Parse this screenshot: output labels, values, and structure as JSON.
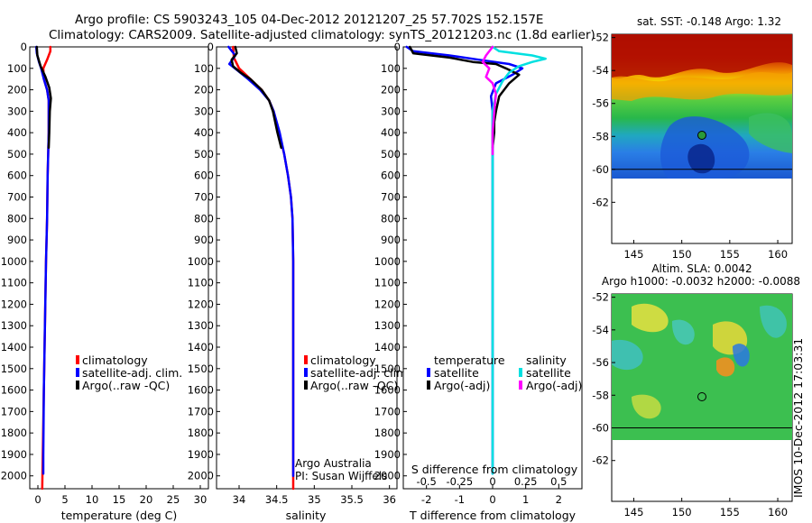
{
  "header": {
    "title_line1": "Argo profile: CS 5903243_105 04-Dec-2012 20121207_25 57.702S 152.157E",
    "title_line2": "Climatology: CARS2009. Satellite-adjusted climatology: synTS_20121203.nc (1.8d earlier)"
  },
  "side_stamp": "IMOS 10-Dec-2012 17:03:31",
  "colors": {
    "climatology": "#ff0000",
    "satellite": "#0000ff",
    "argo": "#000000",
    "sal_satellite": "#00e0e0",
    "sal_argo": "#ff00ff"
  },
  "depth_axis": {
    "ticks": [
      0,
      100,
      200,
      300,
      400,
      500,
      600,
      700,
      800,
      900,
      1000,
      1100,
      1200,
      1300,
      1400,
      1500,
      1600,
      1700,
      1800,
      1900,
      2000
    ],
    "max": 2060
  },
  "chart_data": [
    {
      "type": "line",
      "id": "temperature",
      "xlabel": "temperature (deg C)",
      "xlim": [
        -1.5,
        31.5
      ],
      "xticks": [
        0,
        5,
        10,
        15,
        20,
        25,
        30
      ],
      "y_axis": "depth (m), increasing downward",
      "legend": [
        "climatology",
        "satellite-adj. clim.",
        "Argo(..raw -QC)"
      ],
      "series": [
        {
          "name": "climatology",
          "color": "#ff0000",
          "width": 2.5,
          "points": [
            [
              2.3,
              0
            ],
            [
              2.3,
              20
            ],
            [
              1.7,
              60
            ],
            [
              1.0,
              100
            ],
            [
              1.1,
              150
            ],
            [
              1.7,
              200
            ],
            [
              2.0,
              250
            ],
            [
              2.0,
              300
            ],
            [
              2.0,
              400
            ],
            [
              1.9,
              500
            ],
            [
              1.8,
              600
            ],
            [
              1.7,
              800
            ],
            [
              1.5,
              1000
            ],
            [
              1.3,
              1300
            ],
            [
              1.1,
              1600
            ],
            [
              0.9,
              1900
            ],
            [
              0.8,
              2060
            ]
          ]
        },
        {
          "name": "satellite-adj. clim.",
          "color": "#0000ff",
          "width": 2.5,
          "points": [
            [
              -0.3,
              0
            ],
            [
              -0.2,
              30
            ],
            [
              0.2,
              70
            ],
            [
              0.6,
              100
            ],
            [
              1.1,
              150
            ],
            [
              1.7,
              200
            ],
            [
              2.0,
              250
            ],
            [
              2.0,
              300
            ],
            [
              2.0,
              400
            ],
            [
              1.9,
              500
            ],
            [
              1.8,
              600
            ],
            [
              1.7,
              800
            ],
            [
              1.5,
              1000
            ],
            [
              1.3,
              1300
            ],
            [
              1.1,
              1600
            ],
            [
              1.0,
              1900
            ],
            [
              1.0,
              1990
            ]
          ]
        },
        {
          "name": "Argo(..raw -QC)",
          "color": "#000000",
          "width": 2.5,
          "points": [
            [
              -0.2,
              0
            ],
            [
              -0.1,
              40
            ],
            [
              0.5,
              90
            ],
            [
              1.4,
              140
            ],
            [
              2.1,
              190
            ],
            [
              2.4,
              240
            ],
            [
              2.2,
              300
            ],
            [
              2.1,
              400
            ],
            [
              2.0,
              470
            ]
          ]
        }
      ]
    },
    {
      "type": "line",
      "id": "salinity",
      "xlabel": "salinity",
      "xlim": [
        33.7,
        36.1
      ],
      "xticks": [
        34,
        34.5,
        35,
        35.5,
        36
      ],
      "legend": [
        "climatology",
        "satellite-adj. clim.",
        "Argo(..raw -QC)"
      ],
      "annotation": [
        "Argo Australia",
        "PI: Susan Wijffels"
      ],
      "series": [
        {
          "name": "climatology",
          "color": "#ff0000",
          "width": 2.5,
          "points": [
            [
              33.92,
              0
            ],
            [
              33.93,
              50
            ],
            [
              34.0,
              100
            ],
            [
              34.15,
              150
            ],
            [
              34.3,
              200
            ],
            [
              34.4,
              250
            ],
            [
              34.46,
              300
            ],
            [
              34.53,
              400
            ],
            [
              34.6,
              500
            ],
            [
              34.65,
              600
            ],
            [
              34.69,
              700
            ],
            [
              34.71,
              800
            ],
            [
              34.72,
              1000
            ],
            [
              34.72,
              1500
            ],
            [
              34.72,
              2060
            ]
          ]
        },
        {
          "name": "satellite-adj. clim.",
          "color": "#0000ff",
          "width": 2.5,
          "points": [
            [
              33.86,
              0
            ],
            [
              33.95,
              40
            ],
            [
              33.87,
              80
            ],
            [
              33.98,
              110
            ],
            [
              34.12,
              150
            ],
            [
              34.28,
              200
            ],
            [
              34.4,
              250
            ],
            [
              34.46,
              300
            ],
            [
              34.54,
              400
            ],
            [
              34.6,
              500
            ],
            [
              34.65,
              600
            ],
            [
              34.69,
              700
            ],
            [
              34.71,
              800
            ],
            [
              34.72,
              1000
            ],
            [
              34.72,
              1500
            ],
            [
              34.72,
              2000
            ]
          ]
        },
        {
          "name": "Argo(..raw -QC)",
          "color": "#000000",
          "width": 2.5,
          "points": [
            [
              33.95,
              0
            ],
            [
              33.97,
              30
            ],
            [
              33.9,
              60
            ],
            [
              33.92,
              90
            ],
            [
              34.02,
              120
            ],
            [
              34.15,
              150
            ],
            [
              34.3,
              200
            ],
            [
              34.4,
              250
            ],
            [
              34.45,
              300
            ],
            [
              34.51,
              400
            ],
            [
              34.56,
              470
            ]
          ]
        }
      ]
    },
    {
      "type": "line",
      "id": "difference",
      "xlabel": "T difference from climatology",
      "xlabel_top": "S difference from climatology",
      "xlim": [
        -2.7,
        2.7
      ],
      "xticks": [
        -2,
        -1,
        0,
        1,
        2
      ],
      "xticks_top": [
        -0.5,
        -0.25,
        0,
        0.25,
        0.5
      ],
      "legend_temperature_title": "temperature",
      "legend_salinity_title": "salinity",
      "legend_temperature": [
        "satellite",
        "Argo(-adj)"
      ],
      "legend_salinity": [
        "satellite",
        "Argo(-adj)"
      ],
      "series": [
        {
          "name": "temperature satellite",
          "color": "#0000ff",
          "width": 2.5,
          "points": [
            [
              -2.6,
              0
            ],
            [
              -2.4,
              20
            ],
            [
              -1.3,
              40
            ],
            [
              -0.4,
              60
            ],
            [
              0.5,
              80
            ],
            [
              0.9,
              100
            ],
            [
              0.6,
              130
            ],
            [
              0.1,
              170
            ],
            [
              -0.05,
              230
            ],
            [
              0,
              300
            ],
            [
              0,
              400
            ],
            [
              0,
              600
            ],
            [
              0,
              1000
            ],
            [
              0,
              1500
            ],
            [
              0,
              1990
            ]
          ]
        },
        {
          "name": "temperature Argo(-adj)",
          "color": "#000000",
          "width": 2.5,
          "points": [
            [
              -2.5,
              0
            ],
            [
              -2.4,
              30
            ],
            [
              -1.3,
              50
            ],
            [
              -0.6,
              70
            ],
            [
              0.1,
              80
            ],
            [
              0.4,
              100
            ],
            [
              0.8,
              130
            ],
            [
              0.5,
              170
            ],
            [
              0.2,
              230
            ],
            [
              0.1,
              300
            ],
            [
              0.05,
              350
            ],
            [
              0.05,
              400
            ],
            [
              0,
              470
            ]
          ]
        },
        {
          "name": "salinity satellite",
          "color": "#00e0e0",
          "width": 2.5,
          "points": [
            [
              0,
              0
            ],
            [
              0.2,
              20
            ],
            [
              1.2,
              40
            ],
            [
              1.6,
              55
            ],
            [
              1.2,
              70
            ],
            [
              0.8,
              90
            ],
            [
              0.5,
              120
            ],
            [
              0.3,
              160
            ],
            [
              0.1,
              220
            ],
            [
              0,
              300
            ],
            [
              0,
              600
            ],
            [
              0,
              1000
            ],
            [
              0,
              1500
            ],
            [
              0,
              1990
            ]
          ]
        },
        {
          "name": "salinity Argo(-adj)",
          "color": "#ff00ff",
          "width": 2.5,
          "points": [
            [
              0,
              0
            ],
            [
              -0.2,
              40
            ],
            [
              -0.3,
              70
            ],
            [
              -0.1,
              100
            ],
            [
              -0.2,
              140
            ],
            [
              0,
              170
            ],
            [
              0.1,
              220
            ],
            [
              0.05,
              300
            ],
            [
              0,
              400
            ],
            [
              0,
              500
            ]
          ]
        }
      ]
    },
    {
      "type": "heatmap",
      "id": "sst_map",
      "title": "sat. SST: -0.148 Argo: 1.32",
      "xlim": [
        142.7,
        161.5
      ],
      "ylim": [
        -64.5,
        -51.8
      ],
      "xticks": [
        145,
        150,
        155,
        160
      ],
      "yticks": [
        -52,
        -54,
        -56,
        -58,
        -60,
        -62
      ],
      "data_extent_lat": [
        -60,
        -51.8
      ],
      "argo_position": {
        "lon": 152.157,
        "lat": -57.702
      }
    },
    {
      "type": "heatmap",
      "id": "sla_map",
      "title": [
        "Altim. SLA: 0.0042",
        "Argo h1000: -0.0032 h2000: -0.0088"
      ],
      "xlim": [
        142.7,
        161.5
      ],
      "ylim": [
        -64.5,
        -51.8
      ],
      "xticks": [
        145,
        150,
        155,
        160
      ],
      "yticks": [
        -52,
        -54,
        -56,
        -58,
        -60,
        -62
      ],
      "data_extent_lat": [
        -60,
        -51.8
      ],
      "argo_position": {
        "lon": 152.157,
        "lat": -57.702
      }
    }
  ]
}
